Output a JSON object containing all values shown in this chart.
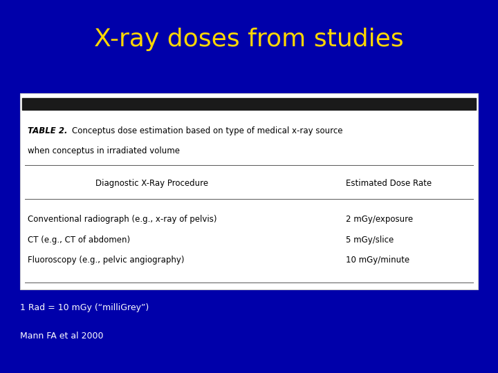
{
  "title": "X-ray doses from studies",
  "title_color": "#FFD700",
  "background_color": "#0000AA",
  "table_title_bold": "TABLE 2.",
  "table_title_rest": "  Conceptus dose estimation based on type of medical x-ray source",
  "table_title_line2": "when conceptus in irradiated volume",
  "col_header_left": "Diagnostic X-Ray Procedure",
  "col_header_right": "Estimated Dose Rate",
  "rows": [
    [
      "Conventional radiograph (e.g., x-ray of pelvis)",
      "2 mGy/exposure"
    ],
    [
      "CT (e.g., CT of abdomen)",
      "5 mGy/slice"
    ],
    [
      "Fluoroscopy (e.g., pelvic angiography)",
      "10 mGy/minute"
    ]
  ],
  "footnote1": "1 Rad = 10 mGy (“milliGrey”)",
  "footnote2": "Mann FA et al 2000",
  "footnote_color": "#ffffff",
  "title_fontsize": 26,
  "table_fontsize": 8.5,
  "footnote_fontsize": 9
}
